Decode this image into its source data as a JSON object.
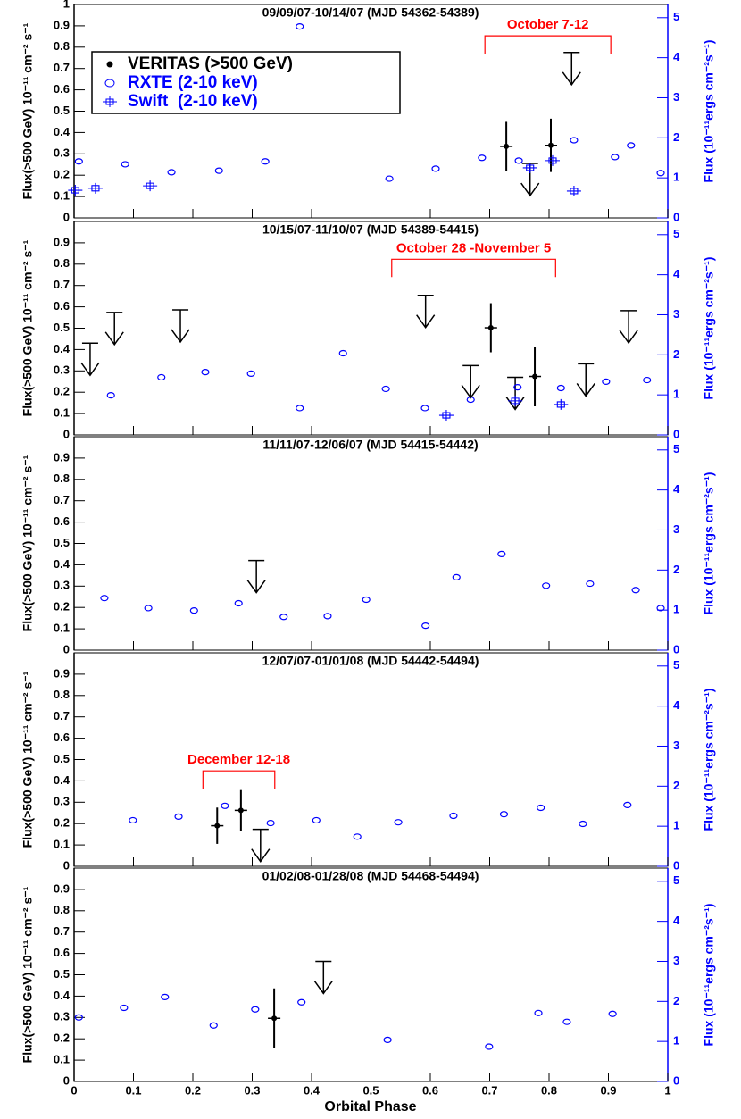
{
  "chart_data": [
    {
      "type": "scatter",
      "title": "09/09/07-10/14/07 (MJD 54362-54389)",
      "ylabel": "Flux(>500 GeV) 10⁻¹¹ cm⁻² s⁻¹",
      "y2label": "Flux (10⁻¹¹ergs cm⁻²s⁻¹)",
      "xlim": [
        0,
        1
      ],
      "xticks": [
        0,
        0.1,
        0.2,
        0.3,
        0.4,
        0.5,
        0.6,
        0.7,
        0.8,
        0.9,
        1
      ],
      "show_xtick_labels": false,
      "ylim": [
        0,
        1
      ],
      "yticks": [
        0,
        0.1,
        0.2,
        0.3,
        0.4,
        0.5,
        0.6,
        0.7,
        0.8,
        0.9,
        1
      ],
      "y2lim": [
        0,
        5.33
      ],
      "y2ticks": [
        0,
        1,
        2,
        3,
        4,
        5
      ],
      "legend": "upper left",
      "annotations": [
        {
          "text": "October 7-12",
          "x": [
            0.692,
            0.904
          ],
          "y": 0.853
        }
      ],
      "series": [
        {
          "name": "VERITAS (>500 GeV)",
          "color": "#000000",
          "marker": "dot",
          "x": [
            0.728,
            0.803
          ],
          "values": [
            0.335,
            0.34
          ],
          "errors": [
            0.115,
            0.125
          ]
        },
        {
          "color": "#000000",
          "marker": "arrow",
          "x": [
            0.768,
            0.838
          ],
          "values": [
            0.255,
            0.775
          ]
        },
        {
          "name": "RXTE (2-10 keV)",
          "color": "#0000ff",
          "marker": "ellipse",
          "axis": "y2",
          "x": [
            0.008,
            0.086,
            0.164,
            0.244,
            0.322,
            0.38,
            0.531,
            0.609,
            0.687,
            0.749,
            0.842,
            0.911,
            0.938,
            0.988
          ],
          "values": [
            1.41,
            1.34,
            1.14,
            1.18,
            1.41,
            4.78,
            0.98,
            1.23,
            1.5,
            1.43,
            1.94,
            1.52,
            1.81,
            1.12
          ]
        },
        {
          "name": "Swift  (2-10 keV)",
          "color": "#0000ff",
          "marker": "box",
          "axis": "y2",
          "x": [
            0.002,
            0.036,
            0.128,
            0.768,
            0.806,
            0.842
          ],
          "values": [
            0.69,
            0.74,
            0.8,
            1.25,
            1.43,
            0.67
          ]
        }
      ]
    },
    {
      "type": "scatter",
      "title": "10/15/07-11/10/07 (MJD 54389-54415)",
      "ylabel": "Flux(>500 GeV) 10⁻¹¹ cm⁻² s⁻¹",
      "y2label": "Flux (10⁻¹¹ergs cm⁻²s⁻¹)",
      "xlim": [
        0,
        1
      ],
      "xticks": [
        0,
        0.1,
        0.2,
        0.3,
        0.4,
        0.5,
        0.6,
        0.7,
        0.8,
        0.9,
        1
      ],
      "show_xtick_labels": false,
      "ylim": [
        0,
        1
      ],
      "yticks": [
        0,
        0.1,
        0.2,
        0.3,
        0.4,
        0.5,
        0.6,
        0.7,
        0.8,
        0.9
      ],
      "y2lim": [
        0,
        5.33
      ],
      "y2ticks": [
        0,
        1,
        2,
        3,
        4,
        5
      ],
      "annotations": [
        {
          "text": "October 28 -November 5",
          "x": [
            0.535,
            0.811
          ],
          "y": 0.823
        }
      ],
      "series": [
        {
          "color": "#000000",
          "marker": "dot",
          "x": [
            0.702,
            0.776
          ],
          "values": [
            0.502,
            0.274
          ],
          "errors": [
            0.115,
            0.14
          ]
        },
        {
          "color": "#000000",
          "marker": "arrow",
          "x": [
            0.027,
            0.068,
            0.179,
            0.592,
            0.668,
            0.743,
            0.862,
            0.934
          ],
          "values": [
            0.43,
            0.574,
            0.586,
            0.654,
            0.325,
            0.27,
            0.333,
            0.582
          ]
        },
        {
          "color": "#0000ff",
          "marker": "ellipse",
          "axis": "y2",
          "x": [
            0.062,
            0.147,
            0.221,
            0.298,
            0.38,
            0.453,
            0.525,
            0.591,
            0.668,
            0.747,
            0.82,
            0.896,
            0.965
          ],
          "values": [
            0.99,
            1.44,
            1.57,
            1.53,
            0.67,
            2.04,
            1.15,
            0.67,
            0.88,
            1.19,
            1.17,
            1.33,
            1.37
          ]
        },
        {
          "color": "#0000ff",
          "marker": "box",
          "axis": "y2",
          "x": [
            0.627,
            0.743,
            0.82
          ],
          "values": [
            0.49,
            0.85,
            0.76
          ]
        }
      ]
    },
    {
      "type": "scatter",
      "title": "11/11/07-12/06/07 (MJD 54415-54442)",
      "ylabel": "Flux(>500 GeV) 10⁻¹¹ cm⁻² s⁻¹",
      "y2label": "Flux (10⁻¹¹ergs cm⁻²s⁻¹)",
      "xlim": [
        0,
        1
      ],
      "xticks": [
        0,
        0.1,
        0.2,
        0.3,
        0.4,
        0.5,
        0.6,
        0.7,
        0.8,
        0.9,
        1
      ],
      "show_xtick_labels": false,
      "ylim": [
        0,
        1
      ],
      "yticks": [
        0,
        0.1,
        0.2,
        0.3,
        0.4,
        0.5,
        0.6,
        0.7,
        0.8,
        0.9
      ],
      "y2lim": [
        0,
        5.33
      ],
      "y2ticks": [
        0,
        1,
        2,
        3,
        4,
        5
      ],
      "series": [
        {
          "color": "#000000",
          "marker": "arrow",
          "x": [
            0.307
          ],
          "values": [
            0.42
          ]
        },
        {
          "color": "#0000ff",
          "marker": "ellipse",
          "axis": "y2",
          "x": [
            0.051,
            0.125,
            0.202,
            0.277,
            0.353,
            0.427,
            0.492,
            0.592,
            0.644,
            0.72,
            0.795,
            0.869,
            0.946,
            0.988
          ],
          "values": [
            1.3,
            1.05,
            0.99,
            1.17,
            0.83,
            0.85,
            1.26,
            0.61,
            1.82,
            2.4,
            1.61,
            1.66,
            1.5,
            1.05
          ]
        }
      ]
    },
    {
      "type": "scatter",
      "title": "12/07/07-01/01/08 (MJD 54442-54494)",
      "ylabel": "Flux(>500 GeV) 10⁻¹¹ cm⁻² s⁻¹",
      "y2label": "Flux (10⁻¹¹ergs cm⁻²s⁻¹)",
      "xlim": [
        0,
        1
      ],
      "xticks": [
        0,
        0.1,
        0.2,
        0.3,
        0.4,
        0.5,
        0.6,
        0.7,
        0.8,
        0.9,
        1
      ],
      "show_xtick_labels": false,
      "ylim": [
        0,
        1
      ],
      "yticks": [
        0,
        0.1,
        0.2,
        0.3,
        0.4,
        0.5,
        0.6,
        0.7,
        0.8,
        0.9
      ],
      "y2lim": [
        0,
        5.33
      ],
      "y2ticks": [
        0,
        1,
        2,
        3,
        4,
        5
      ],
      "annotations": [
        {
          "text": "December 12-18",
          "x": [
            0.217,
            0.338
          ],
          "y": 0.447
        }
      ],
      "series": [
        {
          "color": "#000000",
          "marker": "dot",
          "x": [
            0.241,
            0.281
          ],
          "values": [
            0.19,
            0.262
          ],
          "errors": [
            0.085,
            0.095
          ]
        },
        {
          "color": "#000000",
          "marker": "arrow",
          "x": [
            0.314
          ],
          "values": [
            0.173
          ]
        },
        {
          "color": "#0000ff",
          "marker": "ellipse",
          "axis": "y2",
          "x": [
            0.099,
            0.176,
            0.254,
            0.331,
            0.408,
            0.477,
            0.546,
            0.639,
            0.724,
            0.786,
            0.857,
            0.932
          ],
          "values": [
            1.15,
            1.24,
            1.51,
            1.08,
            1.15,
            0.74,
            1.1,
            1.26,
            1.3,
            1.46,
            1.06,
            1.53
          ]
        }
      ]
    },
    {
      "type": "scatter",
      "title": "01/02/08-01/28/08 (MJD 54468-54494)",
      "ylabel": "Flux(>500 GeV) 10⁻¹¹ cm⁻² s⁻¹",
      "y2label": "Flux (10⁻¹¹ergs cm⁻²s⁻¹)",
      "xlabel": "Orbital Phase",
      "xlim": [
        0,
        1
      ],
      "xticks": [
        0,
        0.1,
        0.2,
        0.3,
        0.4,
        0.5,
        0.6,
        0.7,
        0.8,
        0.9,
        1
      ],
      "show_xtick_labels": true,
      "ylim": [
        0,
        1
      ],
      "yticks": [
        0,
        0.1,
        0.2,
        0.3,
        0.4,
        0.5,
        0.6,
        0.7,
        0.8,
        0.9
      ],
      "y2lim": [
        0,
        5.33
      ],
      "y2ticks": [
        0,
        1,
        2,
        3,
        4,
        5
      ],
      "series": [
        {
          "color": "#000000",
          "marker": "dot",
          "x": [
            0.337
          ],
          "values": [
            0.296
          ],
          "errors": [
            0.14
          ]
        },
        {
          "color": "#000000",
          "marker": "arrow",
          "x": [
            0.42
          ],
          "values": [
            0.563
          ]
        },
        {
          "color": "#0000ff",
          "marker": "ellipse",
          "axis": "y2",
          "x": [
            0.008,
            0.084,
            0.153,
            0.235,
            0.305,
            0.383,
            0.528,
            0.699,
            0.782,
            0.83,
            0.907
          ],
          "values": [
            1.6,
            1.84,
            2.11,
            1.4,
            1.8,
            1.98,
            1.04,
            0.87,
            1.71,
            1.49,
            1.69
          ]
        }
      ]
    }
  ]
}
